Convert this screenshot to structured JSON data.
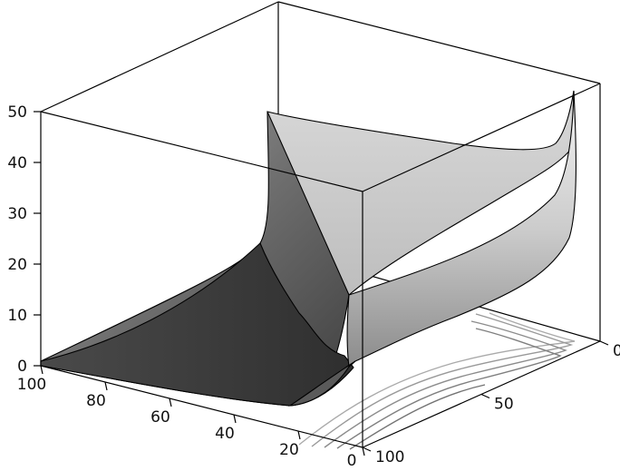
{
  "chart_data": {
    "type": "surface3d",
    "title": "",
    "xlabel": "",
    "ylabel": "",
    "zlabel": "",
    "x_axis": {
      "range": [
        100,
        0
      ],
      "ticks": [
        "100",
        "80",
        "60",
        "40",
        "20",
        "0"
      ]
    },
    "y_axis": {
      "range": [
        0,
        100
      ],
      "ticks": [
        "0",
        "50",
        "100"
      ]
    },
    "z_axis": {
      "range": [
        0,
        50
      ],
      "ticks": [
        "0",
        "10",
        "20",
        "30",
        "40",
        "50"
      ]
    },
    "surface": {
      "description_values": {
        "corner_far_x100_y0": 0,
        "corner_near_x0_y100": 0,
        "wall_x0_y0": 50,
        "wall_x0_top_y100": 14,
        "far_right_peak": 53
      }
    },
    "contours": {
      "levels": [
        2,
        4,
        6,
        8,
        10
      ],
      "projection": "floor"
    },
    "grid": false,
    "colors": {
      "surface_dark": "#4a4a4a",
      "surface_light": "#e2e2e2",
      "contour": "#8a8a8a",
      "box": "#000000"
    }
  }
}
